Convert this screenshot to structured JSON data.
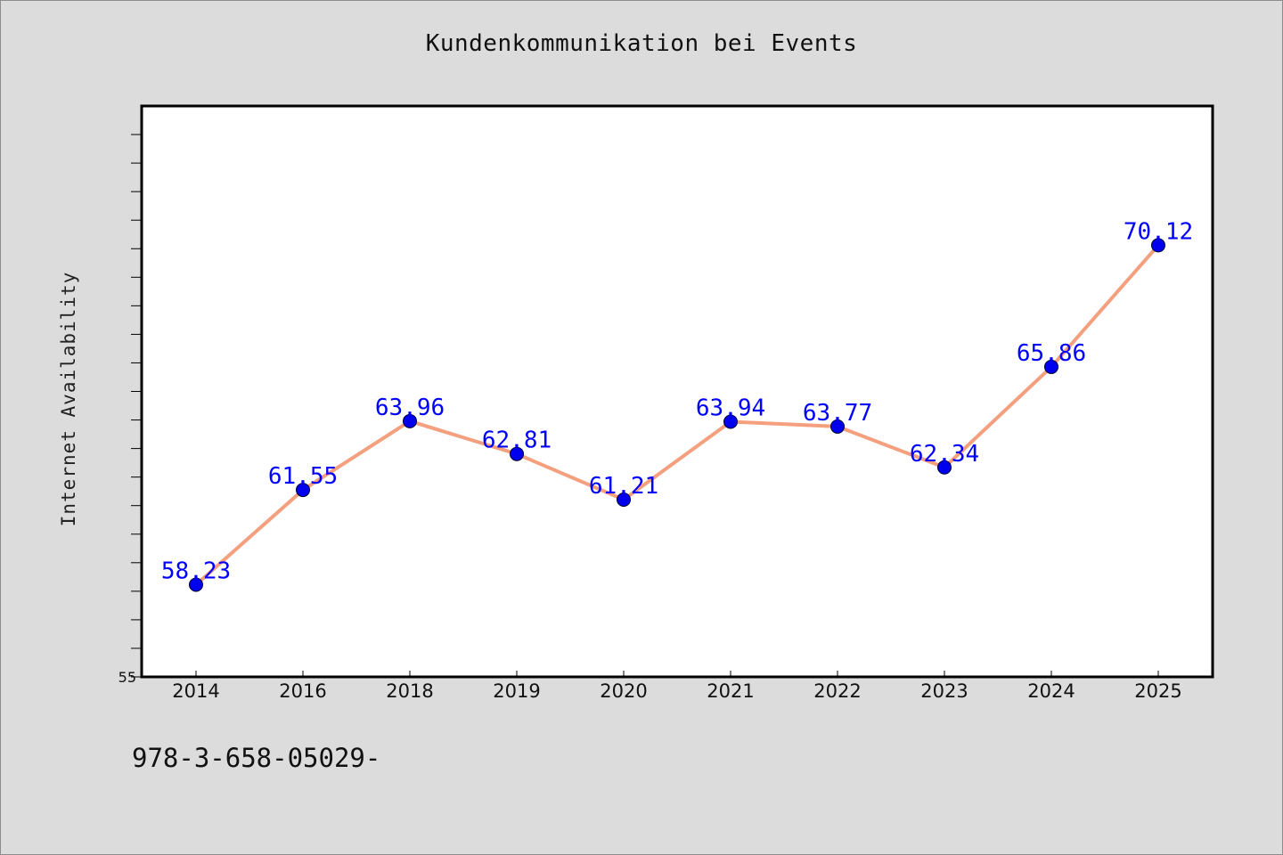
{
  "page": {
    "footer_code": "978-3-658-05029-"
  },
  "chart_data": {
    "type": "line",
    "title": "Kundenkommunikation bei Events",
    "xlabel": "",
    "ylabel": "Internet Availability",
    "categories": [
      "2014",
      "2016",
      "2018",
      "2019",
      "2020",
      "2021",
      "2022",
      "2023",
      "2024",
      "2025"
    ],
    "series": [
      {
        "values": [
          58.23,
          61.55,
          63.96,
          62.81,
          61.21,
          63.94,
          63.77,
          62.34,
          65.86,
          70.12
        ],
        "labels": [
          "58.23",
          "61.55",
          "63.96",
          "62.81",
          "61.21",
          "63.94",
          "63.77",
          "62.34",
          "65.86",
          "70.12"
        ],
        "line_color": "#f4a07e",
        "marker_color": "#0000ee",
        "label_color": "#0000ff"
      }
    ],
    "ylim": [
      55,
      75
    ],
    "y_tick_labels": [
      "55"
    ],
    "y_minor_step": 1,
    "grid": false,
    "legend": "none",
    "colors": {
      "background": "#dcdcdc",
      "plot_area": "#ffffff",
      "axis": "#000000"
    }
  }
}
